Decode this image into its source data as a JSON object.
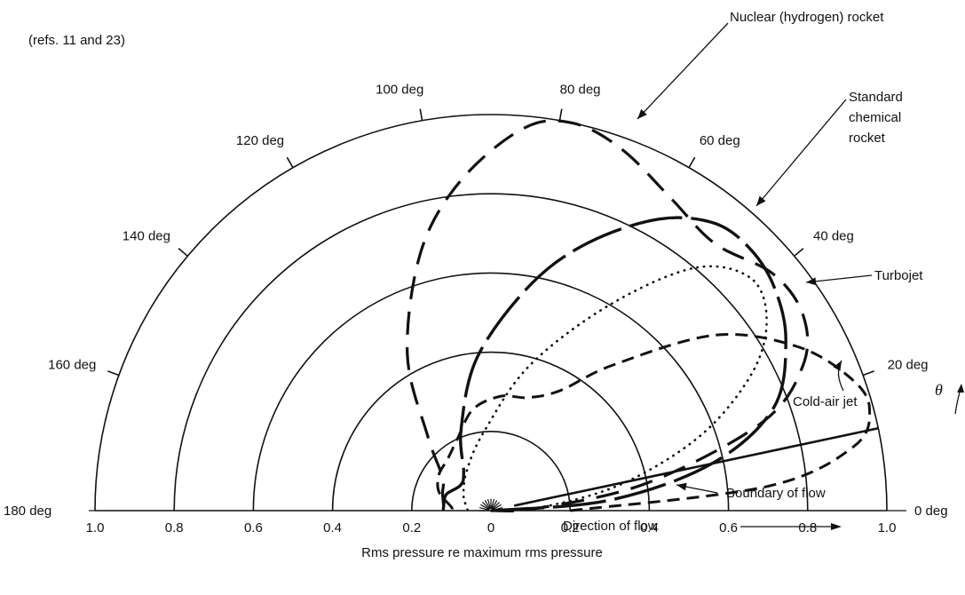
{
  "chart_data": {
    "type": "polar",
    "reference": "(refs. 11 and 23)",
    "xlabel": "Rms pressure re maximum rms pressure",
    "flow_direction_label": "Direction of flow",
    "angle_symbol": "θ",
    "radial_ticks": [
      {
        "value": 1.0,
        "label": "1.0"
      },
      {
        "value": 0.8,
        "label": "0.8"
      },
      {
        "value": 0.6,
        "label": "0.6"
      },
      {
        "value": 0.4,
        "label": "0.4"
      },
      {
        "value": 0.2,
        "label": "0.2"
      },
      {
        "value": 0,
        "label": "0"
      },
      {
        "value": 0.2,
        "label": "0.2",
        "side": "right"
      },
      {
        "value": 0.4,
        "label": "0.4",
        "side": "right"
      },
      {
        "value": 0.6,
        "label": "0.6",
        "side": "right"
      },
      {
        "value": 0.8,
        "label": "0.8",
        "side": "right"
      },
      {
        "value": 1.0,
        "label": "1.0",
        "side": "right"
      }
    ],
    "angle_ticks": [
      {
        "deg": 0,
        "label": "0 deg"
      },
      {
        "deg": 20,
        "label": "20 deg"
      },
      {
        "deg": 40,
        "label": "40 deg"
      },
      {
        "deg": 60,
        "label": "60 deg"
      },
      {
        "deg": 80,
        "label": "80 deg"
      },
      {
        "deg": 100,
        "label": "100 deg"
      },
      {
        "deg": 120,
        "label": "120 deg"
      },
      {
        "deg": 140,
        "label": "140 deg"
      },
      {
        "deg": 160,
        "label": "160 deg"
      },
      {
        "deg": 180,
        "label": "180 deg"
      }
    ],
    "rings": [
      0.2,
      0.4,
      0.6,
      0.8,
      1.0
    ],
    "theta_range_deg": [
      0,
      180
    ],
    "r_range": [
      0,
      1.0
    ],
    "series": [
      {
        "name": "Nuclear (hydrogen) rocket",
        "style": "long-dash",
        "points": [
          [
            0,
            0
          ],
          [
            3,
            0.12
          ],
          [
            10,
            0.4
          ],
          [
            18,
            0.72
          ],
          [
            25,
            0.87
          ],
          [
            32,
            0.93
          ],
          [
            40,
            0.93
          ],
          [
            50,
            0.88
          ],
          [
            60,
            0.91
          ],
          [
            70,
            0.97
          ],
          [
            78,
            1.0
          ],
          [
            85,
            0.97
          ],
          [
            95,
            0.84
          ],
          [
            105,
            0.68
          ],
          [
            118,
            0.45
          ],
          [
            130,
            0.25
          ],
          [
            145,
            0.15
          ],
          [
            160,
            0.13
          ],
          [
            175,
            0.12
          ],
          [
            180,
            0.12
          ]
        ]
      },
      {
        "name": "Standard chemical rocket",
        "style": "heavy-solid",
        "points": [
          [
            0,
            0
          ],
          [
            5,
            0.3
          ],
          [
            12,
            0.57
          ],
          [
            20,
            0.76
          ],
          [
            30,
            0.86
          ],
          [
            38,
            0.91
          ],
          [
            45,
            0.93
          ],
          [
            52,
            0.92
          ],
          [
            60,
            0.85
          ],
          [
            70,
            0.72
          ],
          [
            80,
            0.58
          ],
          [
            95,
            0.39
          ],
          [
            110,
            0.22
          ],
          [
            125,
            0.12
          ],
          [
            140,
            0.1
          ],
          [
            160,
            0.12
          ],
          [
            175,
            0.12
          ],
          [
            180,
            0.12
          ]
        ]
      },
      {
        "name": "Turbojet",
        "style": "dotted",
        "points": [
          [
            0,
            0
          ],
          [
            5,
            0.15
          ],
          [
            12,
            0.35
          ],
          [
            20,
            0.57
          ],
          [
            28,
            0.75
          ],
          [
            35,
            0.85
          ],
          [
            42,
            0.88
          ],
          [
            50,
            0.8
          ],
          [
            60,
            0.6
          ],
          [
            75,
            0.38
          ],
          [
            95,
            0.2
          ],
          [
            120,
            0.12
          ],
          [
            150,
            0.08
          ],
          [
            175,
            0.06
          ],
          [
            180,
            0.06
          ]
        ]
      },
      {
        "name": "Cold-air jet",
        "style": "dashed",
        "points": [
          [
            0,
            0.2
          ],
          [
            5,
            0.7
          ],
          [
            10,
            0.93
          ],
          [
            15,
            0.99
          ],
          [
            20,
            0.97
          ],
          [
            28,
            0.88
          ],
          [
            38,
            0.72
          ],
          [
            50,
            0.48
          ],
          [
            60,
            0.35
          ],
          [
            72,
            0.3
          ],
          [
            85,
            0.29
          ],
          [
            100,
            0.26
          ],
          [
            115,
            0.2
          ],
          [
            130,
            0.17
          ],
          [
            145,
            0.16
          ],
          [
            160,
            0.14
          ],
          [
            175,
            0.1
          ],
          [
            180,
            0.1
          ]
        ]
      }
    ],
    "boundary_of_flow": {
      "name": "Boundary of flow",
      "angle_deg": 12
    }
  }
}
